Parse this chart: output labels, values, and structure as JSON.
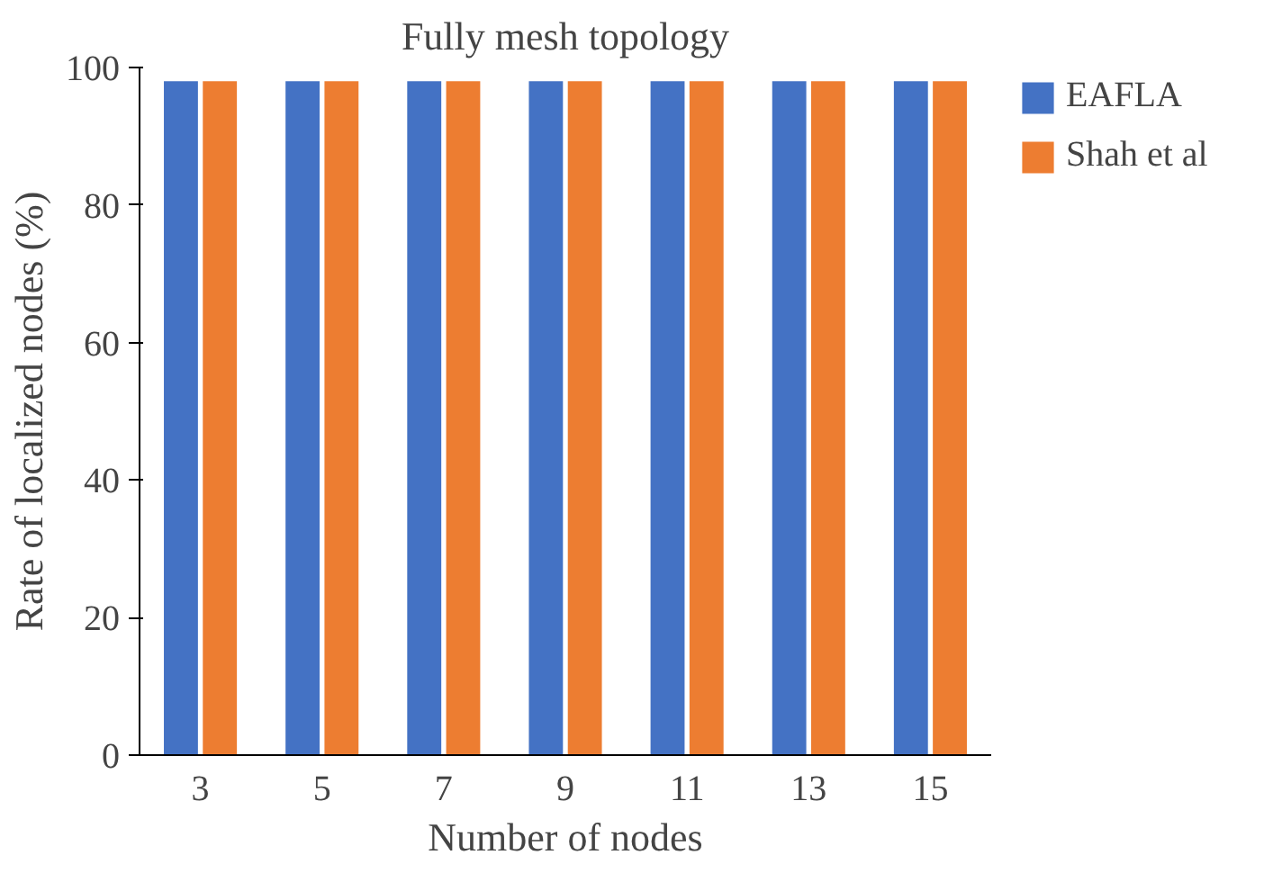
{
  "chart_data": {
    "type": "bar",
    "title": "Fully mesh topology",
    "xlabel": "Number of nodes",
    "ylabel": "Rate of localized nodes (%)",
    "categories": [
      "3",
      "5",
      "7",
      "9",
      "11",
      "13",
      "15"
    ],
    "series": [
      {
        "name": "EAFLA",
        "color": "#4472c4",
        "values": [
          98,
          98,
          98,
          98,
          98,
          98,
          98
        ]
      },
      {
        "name": "Shah et al",
        "color": "#ed7d31",
        "values": [
          98,
          98,
          98,
          98,
          98,
          98,
          98
        ]
      }
    ],
    "ylim": [
      0,
      100
    ],
    "yticks": [
      0,
      20,
      40,
      60,
      80,
      100
    ],
    "grid": false,
    "legend": "top right"
  }
}
